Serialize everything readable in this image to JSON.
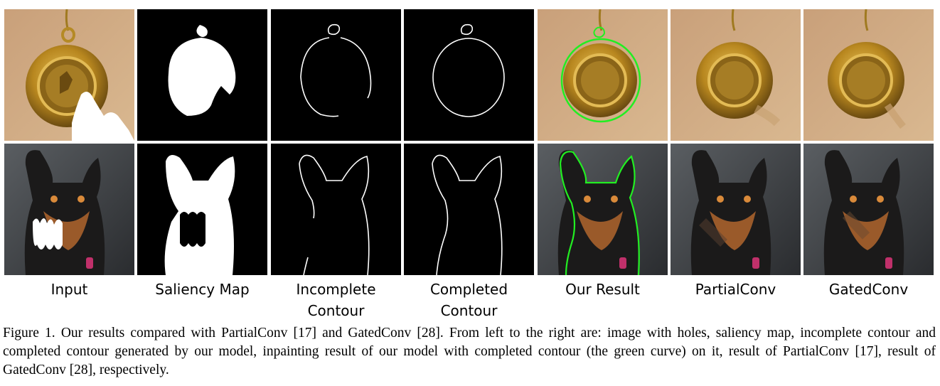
{
  "figure": {
    "columns": [
      {
        "label": "Input"
      },
      {
        "label": "Saliency Map"
      },
      {
        "label": "Incomplete\nContour"
      },
      {
        "label": "Completed\nContour"
      },
      {
        "label": "Our Result"
      },
      {
        "label": "PartialConv"
      },
      {
        "label": "GatedConv"
      }
    ],
    "rows": [
      "medal",
      "dog"
    ],
    "caption": "Figure 1. Our results compared with PartialConv [17] and GatedConv [28]. From left to the right are: image with holes, saliency map, incomplete contour and completed contour generated by our model, inpainting result of our model with completed contour (the green curve) on it, result of PartialConv [17], result of GatedConv [28], respectively.",
    "colors": {
      "medal_bg": "#c9a47c",
      "gold": "#c99a2e",
      "dog_bg": "#3b3f44",
      "contour_green": "#22ee22",
      "map_black": "#000000",
      "mask_white": "#ffffff"
    }
  }
}
